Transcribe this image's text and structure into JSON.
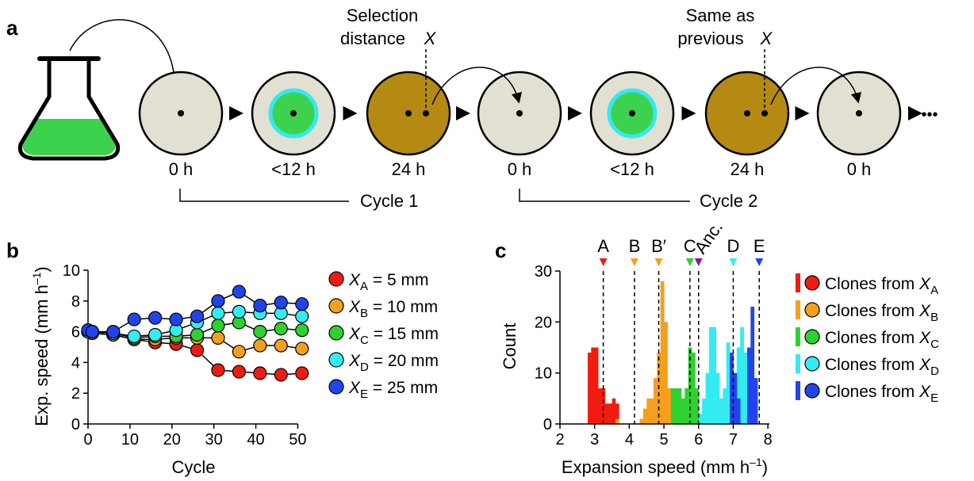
{
  "panels": {
    "a": "a",
    "b": "b",
    "c": "c"
  },
  "panel_a": {
    "selection_label_line1": "Selection",
    "selection_label_line2": "distance",
    "selection_label_var": "X",
    "same_label_line1": "Same as",
    "same_label_line2": "previous",
    "same_label_var": "X",
    "times": [
      "0 h",
      "<12 h",
      "24 h",
      "0 h",
      "<12 h",
      "24 h",
      "0 h"
    ],
    "cycle1": "Cycle 1",
    "cycle2": "Cycle 2",
    "ellipsis": "•••",
    "colors": {
      "agar": "#e2e0d2",
      "growth": "#3dd24d",
      "ring": "#35e8f0",
      "full": "#b58a12",
      "flask_liquid": "#3dd24d"
    }
  },
  "chart_data": [
    {
      "type": "line",
      "panel": "b",
      "xlabel": "Cycle",
      "ylabel": "Exp. speed (mm h",
      "ylabel_sup": "–1",
      "ylabel_end": ")",
      "xlim": [
        0,
        52
      ],
      "ylim": [
        0,
        10
      ],
      "xticks": [
        0,
        10,
        20,
        30,
        40,
        50
      ],
      "yticks": [
        0,
        2,
        4,
        6,
        8,
        10
      ],
      "x": [
        0,
        1,
        6,
        11,
        16,
        21,
        26,
        31,
        36,
        41,
        46,
        51
      ],
      "series": [
        {
          "name": "X",
          "sub": "A",
          "suffix": " = 5 mm",
          "color": "#f01c10",
          "values": [
            6.0,
            5.9,
            5.8,
            5.5,
            5.3,
            5.2,
            4.8,
            3.5,
            3.4,
            3.3,
            3.2,
            3.3
          ]
        },
        {
          "name": "X",
          "sub": "B",
          "suffix": " = 10 mm",
          "color": "#f59f1c",
          "values": [
            6.0,
            5.9,
            5.8,
            5.5,
            5.5,
            5.6,
            5.6,
            5.6,
            4.7,
            5.1,
            5.1,
            4.9
          ]
        },
        {
          "name": "X",
          "sub": "C",
          "suffix": " = 15 mm",
          "color": "#2fd12f",
          "values": [
            6.0,
            6.0,
            5.9,
            5.6,
            5.7,
            5.7,
            5.8,
            6.4,
            6.6,
            6.0,
            6.2,
            6.1
          ]
        },
        {
          "name": "X",
          "sub": "D",
          "suffix": " = 20 mm",
          "color": "#33ecf0",
          "values": [
            6.0,
            6.0,
            5.9,
            5.7,
            5.8,
            6.1,
            6.6,
            7.2,
            7.3,
            7.2,
            7.2,
            7.0
          ]
        },
        {
          "name": "X",
          "sub": "E",
          "suffix": " = 25 mm",
          "color": "#2244ee",
          "values": [
            6.1,
            6.0,
            6.0,
            6.8,
            6.9,
            6.8,
            7.0,
            8.0,
            8.6,
            7.7,
            7.9,
            7.8
          ]
        }
      ]
    },
    {
      "type": "bar",
      "panel": "c",
      "xlabel": "Expansion speed (mm h",
      "xlabel_sup": "–1",
      "xlabel_end": ")",
      "ylabel": "Count",
      "xlim": [
        2,
        8.5
      ],
      "ylim": [
        0,
        30
      ],
      "xticks": [
        2,
        3,
        4,
        5,
        6,
        7,
        8
      ],
      "yticks": [
        0,
        10,
        20,
        30
      ],
      "bin_width": 0.1,
      "markers": [
        {
          "label": "A",
          "x": 3.25,
          "color": "#f01c10"
        },
        {
          "label": "B",
          "x": 4.15,
          "color": "#f59f1c"
        },
        {
          "label": "B′",
          "x": 4.85,
          "color": "#f59f1c"
        },
        {
          "label": "C",
          "x": 5.75,
          "color": "#2fd12f"
        },
        {
          "label": "Anc.",
          "x": 6.0,
          "color": "#8a1a9a"
        },
        {
          "label": "D",
          "x": 7.0,
          "color": "#33ecf0"
        },
        {
          "label": "E",
          "x": 7.75,
          "color": "#2244ee"
        }
      ],
      "series": [
        {
          "name": "Clones from X",
          "sub": "A",
          "color": "#f01c10",
          "bins": [
            [
              2.8,
              14
            ],
            [
              2.9,
              15
            ],
            [
              3.0,
              15
            ],
            [
              3.1,
              7
            ],
            [
              3.2,
              7
            ],
            [
              3.3,
              4
            ],
            [
              3.4,
              4
            ],
            [
              3.5,
              5
            ],
            [
              3.6,
              4
            ]
          ]
        },
        {
          "name": "Clones from X",
          "sub": "B",
          "color": "#f59f1c",
          "bins": [
            [
              3.6,
              1
            ],
            [
              4.3,
              1
            ],
            [
              4.4,
              3
            ],
            [
              4.5,
              5
            ],
            [
              4.6,
              5
            ],
            [
              4.7,
              9
            ],
            [
              4.8,
              14
            ],
            [
              4.9,
              28
            ],
            [
              5.0,
              20
            ],
            [
              5.1,
              7
            ],
            [
              5.2,
              5
            ],
            [
              5.3,
              5
            ],
            [
              5.4,
              3
            ]
          ]
        },
        {
          "name": "Clones from X",
          "sub": "C",
          "color": "#2fd12f",
          "bins": [
            [
              5.2,
              7
            ],
            [
              5.3,
              7
            ],
            [
              5.4,
              7
            ],
            [
              5.5,
              5
            ],
            [
              5.6,
              7
            ],
            [
              5.7,
              15
            ],
            [
              5.8,
              14
            ],
            [
              5.9,
              7
            ],
            [
              6.0,
              2
            ]
          ]
        },
        {
          "name": "Clones from X",
          "sub": "D",
          "color": "#33ecf0",
          "bins": [
            [
              6.0,
              2
            ],
            [
              6.1,
              5
            ],
            [
              6.2,
              10
            ],
            [
              6.3,
              19
            ],
            [
              6.4,
              19
            ],
            [
              6.5,
              10
            ],
            [
              6.6,
              5
            ],
            [
              6.7,
              7
            ],
            [
              6.8,
              16
            ],
            [
              6.9,
              9
            ],
            [
              7.0,
              3
            ],
            [
              7.1,
              15
            ],
            [
              7.2,
              19
            ],
            [
              7.3,
              14
            ],
            [
              7.4,
              9
            ]
          ]
        },
        {
          "name": "Clones from X",
          "sub": "E",
          "color": "#2244ee",
          "bins": [
            [
              6.9,
              14
            ],
            [
              7.0,
              10
            ],
            [
              7.1,
              5
            ],
            [
              7.4,
              15
            ],
            [
              7.5,
              23
            ],
            [
              7.6,
              9
            ]
          ]
        }
      ]
    }
  ]
}
